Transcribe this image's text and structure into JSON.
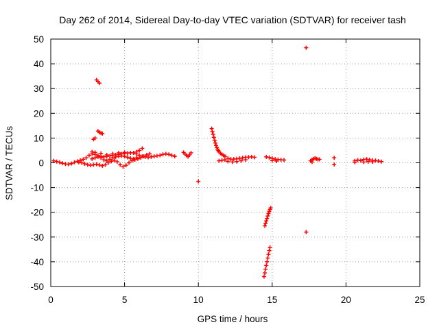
{
  "chart_data": {
    "type": "scatter",
    "title": "Day 262 of 2014, Sidereal Day-to-day VTEC variation (SDTVAR) for receiver tash",
    "xlabel": "GPS time / hours",
    "ylabel": "SDTVAR / TECUs",
    "xlim": [
      0,
      25
    ],
    "ylim": [
      -50,
      50
    ],
    "xticks": [
      0,
      5,
      10,
      15,
      20,
      25
    ],
    "yticks": [
      -50,
      -40,
      -30,
      -20,
      -10,
      0,
      10,
      20,
      30,
      40,
      50
    ],
    "grid": true,
    "marker": "plus",
    "color": "#ff0000",
    "series": [
      {
        "name": "SDTVAR",
        "points": [
          [
            0.2,
            0.8
          ],
          [
            0.4,
            0.5
          ],
          [
            0.6,
            0.2
          ],
          [
            0.8,
            -0.2
          ],
          [
            1.0,
            -0.5
          ],
          [
            1.2,
            -0.6
          ],
          [
            1.4,
            -0.3
          ],
          [
            1.6,
            0.2
          ],
          [
            1.8,
            0.6
          ],
          [
            2.0,
            1.0
          ],
          [
            2.2,
            1.4
          ],
          [
            2.4,
            2.0
          ],
          [
            2.6,
            3.0
          ],
          [
            2.8,
            3.6
          ],
          [
            3.0,
            3.4
          ],
          [
            3.2,
            3.0
          ],
          [
            3.4,
            2.6
          ],
          [
            3.6,
            2.4
          ],
          [
            3.8,
            2.6
          ],
          [
            4.0,
            2.8
          ],
          [
            4.2,
            3.0
          ],
          [
            4.4,
            3.2
          ],
          [
            4.6,
            3.4
          ],
          [
            4.8,
            3.6
          ],
          [
            5.0,
            3.8
          ],
          [
            5.2,
            3.9
          ],
          [
            5.4,
            4.0
          ],
          [
            5.6,
            4.0
          ],
          [
            5.8,
            3.6
          ],
          [
            6.0,
            3.0
          ],
          [
            6.2,
            2.6
          ],
          [
            6.4,
            2.4
          ],
          [
            6.6,
            2.2
          ],
          [
            6.8,
            2.4
          ],
          [
            7.0,
            2.6
          ],
          [
            7.2,
            2.8
          ],
          [
            7.4,
            3.0
          ],
          [
            7.6,
            3.4
          ],
          [
            7.8,
            3.6
          ],
          [
            8.0,
            3.4
          ],
          [
            8.2,
            3.0
          ],
          [
            8.4,
            2.6
          ],
          [
            1.9,
            0.2
          ],
          [
            2.1,
            0.0
          ],
          [
            2.3,
            -0.4
          ],
          [
            2.5,
            -0.8
          ],
          [
            2.7,
            -1.0
          ],
          [
            2.9,
            -0.8
          ],
          [
            3.1,
            -0.6
          ],
          [
            3.3,
            -0.9
          ],
          [
            3.5,
            -1.2
          ],
          [
            3.7,
            -0.8
          ],
          [
            3.9,
            0.0
          ],
          [
            4.1,
            0.6
          ],
          [
            4.3,
            1.0
          ],
          [
            4.5,
            0.4
          ],
          [
            4.7,
            -0.8
          ],
          [
            4.9,
            -1.6
          ],
          [
            5.1,
            -1.0
          ],
          [
            5.3,
            0.0
          ],
          [
            5.5,
            0.8
          ],
          [
            5.7,
            1.2
          ],
          [
            5.9,
            1.6
          ],
          [
            6.1,
            2.0
          ],
          [
            6.3,
            2.6
          ],
          [
            6.5,
            3.2
          ],
          [
            6.7,
            3.6
          ],
          [
            2.8,
            1.6
          ],
          [
            3.0,
            2.0
          ],
          [
            3.2,
            2.4
          ],
          [
            3.4,
            2.0
          ],
          [
            3.6,
            1.2
          ],
          [
            3.8,
            0.8
          ],
          [
            4.0,
            1.4
          ],
          [
            4.2,
            2.0
          ],
          [
            4.4,
            2.4
          ],
          [
            4.6,
            2.6
          ],
          [
            4.8,
            2.8
          ],
          [
            5.0,
            2.6
          ],
          [
            5.2,
            2.2
          ],
          [
            5.4,
            1.8
          ],
          [
            5.6,
            1.6
          ],
          [
            5.8,
            2.0
          ],
          [
            2.8,
            4.4
          ],
          [
            3.0,
            4.2
          ],
          [
            3.4,
            3.8
          ],
          [
            3.8,
            3.2
          ],
          [
            4.2,
            3.6
          ],
          [
            4.6,
            4.0
          ],
          [
            5.0,
            4.2
          ],
          [
            5.4,
            4.0
          ],
          [
            5.8,
            4.4
          ],
          [
            6.0,
            5.0
          ],
          [
            6.2,
            5.8
          ],
          [
            2.9,
            9.5
          ],
          [
            3.0,
            10.0
          ],
          [
            3.1,
            33.5
          ],
          [
            3.2,
            32.8
          ],
          [
            3.3,
            32.2
          ],
          [
            3.2,
            12.8
          ],
          [
            3.3,
            12.3
          ],
          [
            3.4,
            12.0
          ],
          [
            3.5,
            11.8
          ],
          [
            9.0,
            4.2
          ],
          [
            9.1,
            3.5
          ],
          [
            9.2,
            3.0
          ],
          [
            9.3,
            2.5
          ],
          [
            9.4,
            3.2
          ],
          [
            9.5,
            4.0
          ],
          [
            10.0,
            -7.5
          ],
          [
            10.9,
            13.8
          ],
          [
            10.95,
            12.6
          ],
          [
            11.0,
            11.5
          ],
          [
            11.05,
            10.3
          ],
          [
            11.1,
            9.1
          ],
          [
            11.15,
            8.0
          ],
          [
            11.2,
            7.0
          ],
          [
            11.25,
            6.2
          ],
          [
            11.3,
            5.5
          ],
          [
            11.35,
            4.9
          ],
          [
            11.4,
            4.4
          ],
          [
            11.5,
            3.8
          ],
          [
            11.6,
            3.4
          ],
          [
            11.7,
            3.0
          ],
          [
            11.8,
            2.6
          ],
          [
            12.0,
            1.8
          ],
          [
            12.2,
            1.5
          ],
          [
            12.4,
            1.5
          ],
          [
            12.6,
            1.6
          ],
          [
            12.8,
            1.8
          ],
          [
            13.0,
            2.0
          ],
          [
            13.2,
            2.2
          ],
          [
            13.4,
            2.3
          ],
          [
            13.6,
            2.4
          ],
          [
            13.8,
            2.2
          ],
          [
            11.4,
            0.8
          ],
          [
            11.6,
            1.0
          ],
          [
            11.8,
            1.2
          ],
          [
            12.0,
            0.6
          ],
          [
            12.3,
            0.3
          ],
          [
            12.6,
            0.5
          ],
          [
            12.9,
            0.8
          ],
          [
            13.2,
            1.2
          ],
          [
            14.5,
            -25.5
          ],
          [
            14.55,
            -24.5
          ],
          [
            14.6,
            -23.5
          ],
          [
            14.65,
            -22.5
          ],
          [
            14.7,
            -21.5
          ],
          [
            14.75,
            -20.5
          ],
          [
            14.8,
            -19.6
          ],
          [
            14.85,
            -18.8
          ],
          [
            14.9,
            -18.2
          ],
          [
            14.45,
            -46
          ],
          [
            14.5,
            -44.5
          ],
          [
            14.55,
            -43
          ],
          [
            14.6,
            -41.5
          ],
          [
            14.65,
            -40
          ],
          [
            14.7,
            -38.5
          ],
          [
            14.75,
            -37
          ],
          [
            14.8,
            -35.5
          ],
          [
            14.85,
            -34.2
          ],
          [
            14.6,
            2.4
          ],
          [
            14.8,
            2.1
          ],
          [
            15.0,
            1.8
          ],
          [
            15.2,
            1.5
          ],
          [
            15.4,
            1.3
          ],
          [
            15.6,
            1.2
          ],
          [
            15.8,
            1.1
          ],
          [
            15.0,
            0.9
          ],
          [
            15.3,
            0.7
          ],
          [
            17.3,
            46.5
          ],
          [
            17.3,
            -28
          ],
          [
            17.6,
            0.8
          ],
          [
            17.7,
            1.2
          ],
          [
            17.8,
            1.6
          ],
          [
            17.9,
            1.8
          ],
          [
            18.0,
            1.6
          ],
          [
            18.1,
            1.4
          ],
          [
            18.2,
            1.4
          ],
          [
            17.7,
            0.3
          ],
          [
            19.2,
            2.0
          ],
          [
            19.2,
            -0.7
          ],
          [
            20.6,
            0.8
          ],
          [
            20.6,
            0.2
          ],
          [
            20.8,
            1.1
          ],
          [
            21.0,
            0.9
          ],
          [
            21.2,
            1.3
          ],
          [
            21.4,
            1.5
          ],
          [
            21.6,
            1.2
          ],
          [
            21.8,
            1.0
          ],
          [
            22.0,
            0.9
          ],
          [
            22.2,
            0.7
          ],
          [
            22.4,
            0.5
          ],
          [
            21.2,
            0.3
          ],
          [
            21.5,
            0.5
          ],
          [
            21.8,
            0.4
          ]
        ]
      }
    ]
  }
}
